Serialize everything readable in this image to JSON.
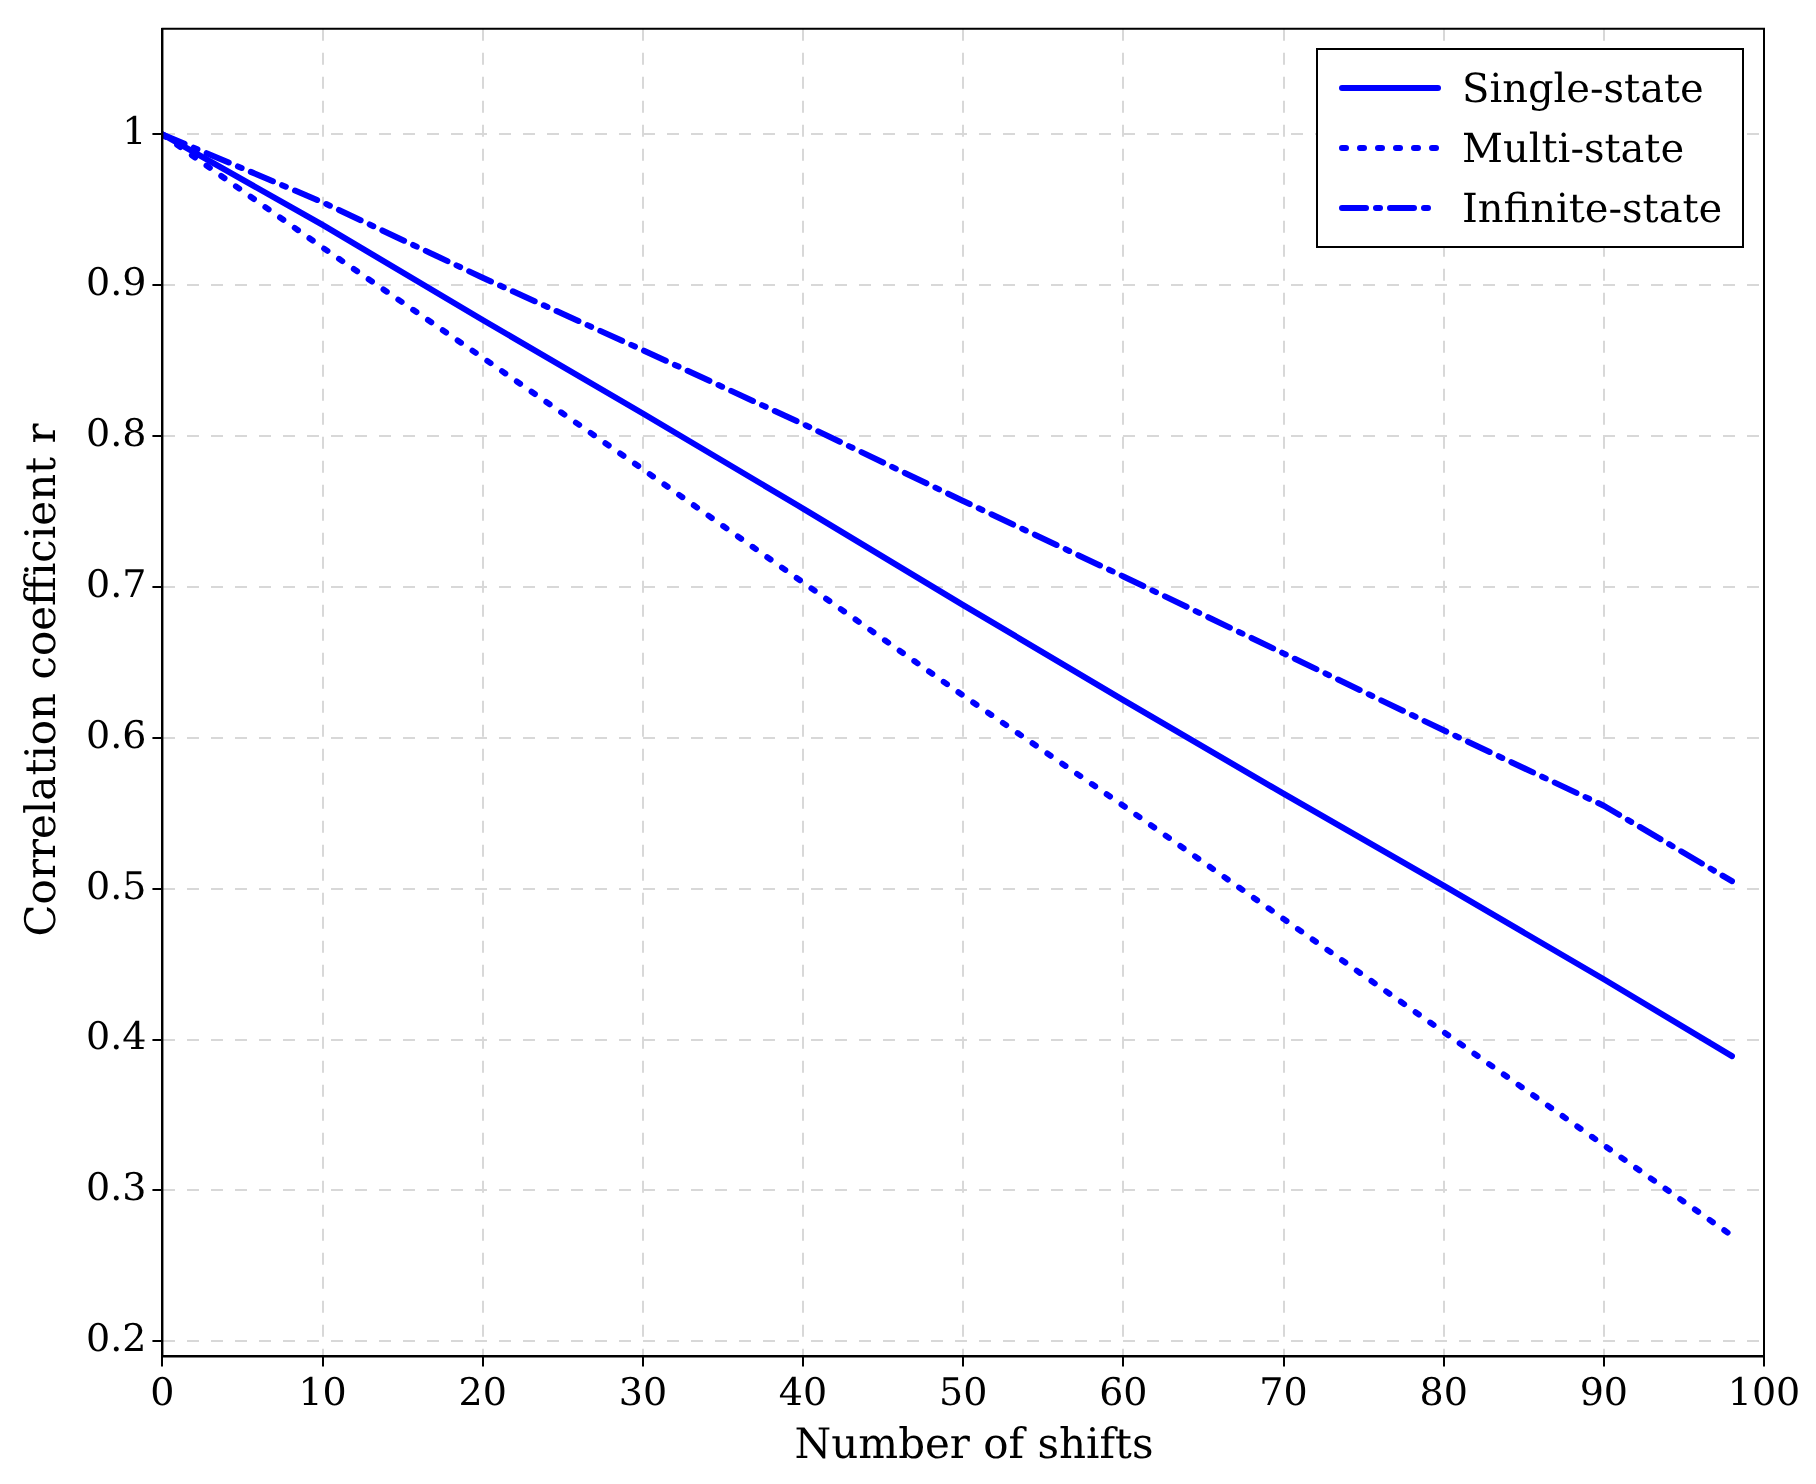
{
  "chart_data": {
    "type": "line",
    "xlabel": "Number of shifts",
    "ylabel": "Correlation coefficient r",
    "xlim": [
      0,
      100
    ],
    "ylim": [
      0.19,
      1.07
    ],
    "xticks": [
      0,
      10,
      20,
      30,
      40,
      50,
      60,
      70,
      80,
      90,
      100
    ],
    "yticks": [
      0.2,
      0.3,
      0.4,
      0.5,
      0.6,
      0.7,
      0.8,
      0.9,
      1
    ],
    "grid": true,
    "legend": "top right",
    "marker": "none",
    "x": [
      0,
      10,
      20,
      30,
      40,
      50,
      60,
      70,
      80,
      90,
      98
    ],
    "series": [
      {
        "name": "Single-state",
        "color": "#0000ff",
        "line_style": "solid",
        "values": [
          1,
          0.94,
          0.877,
          0.815,
          0.752,
          0.688,
          0.625,
          0.563,
          0.502,
          0.44,
          0.389
        ]
      },
      {
        "name": "Multi-state",
        "color": "#0000ff",
        "line_style": "dotted",
        "values": [
          1,
          0.925,
          0.852,
          0.778,
          0.703,
          0.628,
          0.555,
          0.48,
          0.405,
          0.33,
          0.27
        ]
      },
      {
        "name": "Infinite-state",
        "color": "#0000ff",
        "line_style": "dashdot",
        "values": [
          1,
          0.955,
          0.905,
          0.857,
          0.808,
          0.757,
          0.707,
          0.656,
          0.605,
          0.555,
          0.505
        ]
      }
    ]
  }
}
